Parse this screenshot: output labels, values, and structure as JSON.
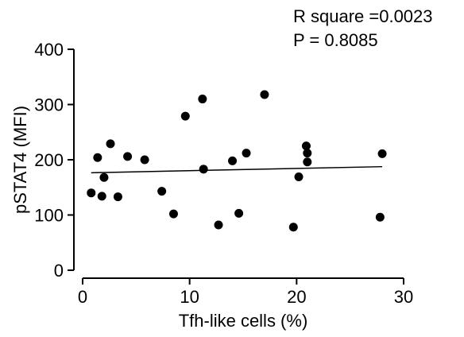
{
  "chart_data": {
    "type": "scatter",
    "title": "",
    "xlabel": "Tfh-like cells (%)",
    "ylabel": "pSTAT4 (MFI)",
    "xlim": [
      0,
      30
    ],
    "ylim": [
      0,
      400
    ],
    "x_ticks": [
      0,
      10,
      20,
      30
    ],
    "y_ticks": [
      0,
      100,
      200,
      300,
      400
    ],
    "x_tick_labels": [
      "0",
      "10",
      "20",
      "30"
    ],
    "y_tick_labels": [
      "0",
      "100",
      "200",
      "300",
      "400"
    ],
    "grid": false,
    "legend": "none",
    "annotations": {
      "r_square": "R square =0.0023",
      "p_value": "P = 0.8085"
    },
    "point_color": "#000000",
    "series": [
      {
        "x": [
          0.8,
          1.4,
          1.8,
          2.0,
          2.6,
          3.3,
          4.2,
          5.8,
          7.4,
          8.5,
          9.6,
          11.2,
          11.3,
          12.7,
          14.0,
          14.6,
          15.3,
          17.0,
          19.7,
          20.2,
          20.9,
          21.0,
          21.0,
          27.8,
          28.0
        ],
        "y": [
          140,
          204,
          134,
          168,
          229,
          133,
          206,
          200,
          143,
          102,
          279,
          310,
          183,
          82,
          198,
          103,
          212,
          318,
          78,
          169,
          225,
          212,
          196,
          96,
          211
        ]
      }
    ],
    "regression_line": {
      "x": [
        0.8,
        28.0
      ],
      "y": [
        176.5,
        187.5
      ]
    }
  }
}
